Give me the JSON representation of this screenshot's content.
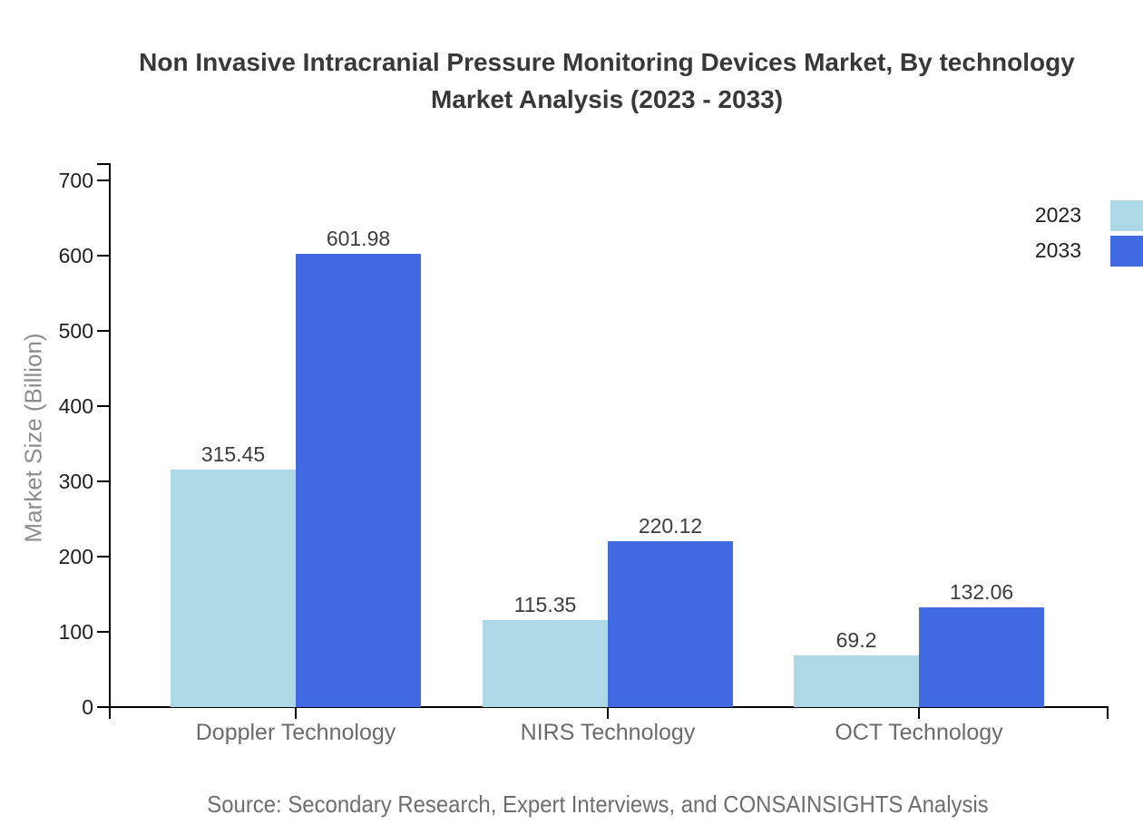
{
  "header": {
    "title_line1": "Non Invasive Intracranial Pressure Monitoring Devices Market, By technology",
    "title_line2": "Market Analysis (2023 - 2033)"
  },
  "footer": {
    "source": "Source: Secondary Research, Expert Interviews, and CONSAINSIGHTS Analysis"
  },
  "chart_data": {
    "type": "bar",
    "title": "Non Invasive Intracranial Pressure Monitoring Devices Market, By technology Market Analysis (2023 - 2033)",
    "categories": [
      "Doppler Technology",
      "NIRS Technology",
      "OCT Technology"
    ],
    "series": [
      {
        "name": "2023",
        "color": "#ADD8E6",
        "values": [
          315.45,
          115.35,
          69.2
        ]
      },
      {
        "name": "2033",
        "color": "#4169E1",
        "values": [
          601.98,
          220.12,
          132.06
        ]
      }
    ],
    "ylabel": "Market Size (Billion)",
    "ylim": [
      0,
      700
    ],
    "yticks": [
      0,
      100,
      200,
      300,
      400,
      500,
      600,
      700
    ],
    "grid": false,
    "legend_position": "right",
    "value_labels_shown": true,
    "axis_color": "#000000",
    "text_colors": {
      "title": "#383838",
      "tick_labels": "#1f1f1f",
      "category_labels": "#6b6b6b",
      "value_labels": "#3d3d3d",
      "axis_label": "#8c8c8c",
      "source": "#6e6e6e"
    }
  }
}
